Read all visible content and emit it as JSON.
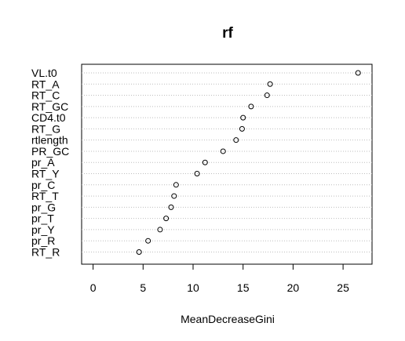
{
  "chart_data": {
    "type": "scatter",
    "title": "rf",
    "xlabel": "MeanDecreaseGini",
    "ylabel": "",
    "xlim": [
      -1,
      27
    ],
    "xticks": [
      0,
      5,
      10,
      15,
      20,
      25
    ],
    "grid": "dotted horizontal guide lines per variable",
    "marker": "open circle",
    "categories": [
      "VL.t0",
      "RT_A",
      "RT_C",
      "RT_GC",
      "CD4.t0",
      "RT_G",
      "rtlength",
      "PR_GC",
      "pr_A",
      "RT_Y",
      "pr_C",
      "RT_T",
      "pr_G",
      "pr_T",
      "pr_Y",
      "pr_R",
      "RT_R"
    ],
    "values": [
      26.5,
      17.7,
      17.4,
      15.8,
      15.0,
      14.9,
      14.3,
      13.0,
      11.2,
      10.4,
      8.3,
      8.1,
      7.8,
      7.3,
      6.7,
      5.5,
      4.6
    ]
  }
}
